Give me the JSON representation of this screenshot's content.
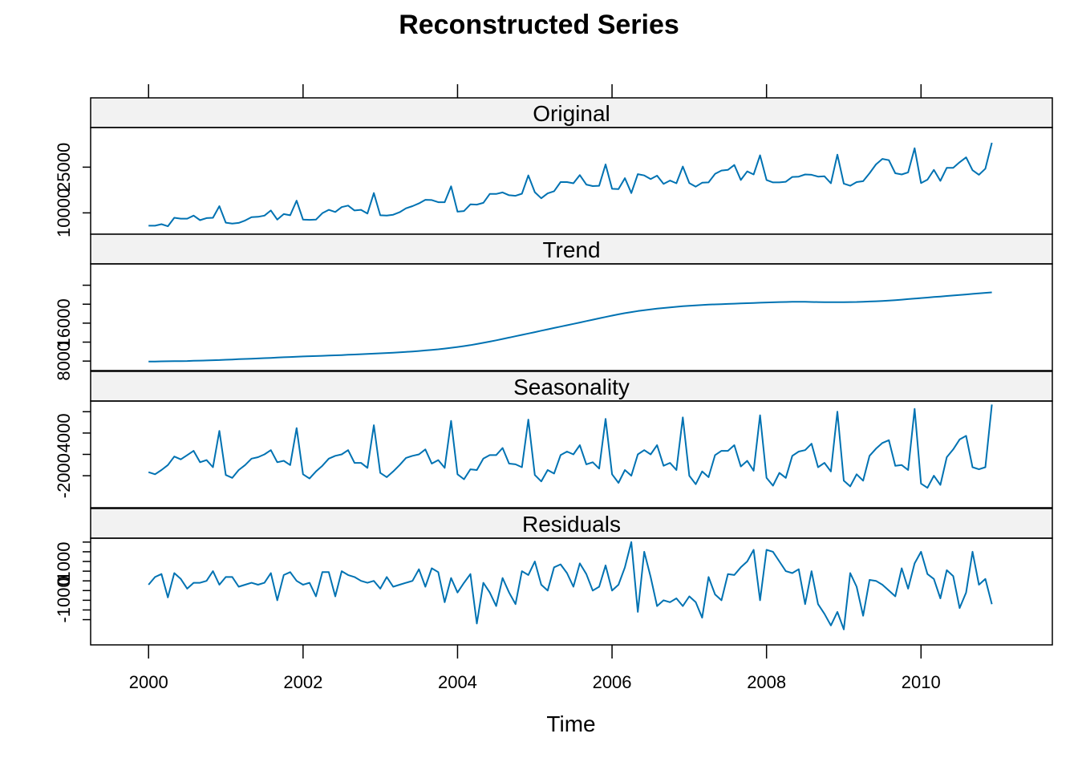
{
  "chart_data": {
    "type": "line",
    "title": "Reconstructed Series",
    "xlabel": "Time",
    "x_ticks": [
      "2000",
      "2002",
      "2004",
      "2006",
      "2008",
      "2010"
    ],
    "x_start": 2000,
    "x_frequency": 12,
    "xlim": [
      1999.25,
      2011.7
    ],
    "line_color": "#0072B2",
    "strip_color": "#f2f2f2",
    "panels": [
      {
        "name": "Original",
        "ylim": [
          3000,
          38000
        ],
        "y_ticks": [
          {
            "value": 10000,
            "label": "10000"
          },
          {
            "value": 25000,
            "label": "25000"
          }
        ],
        "values": [
          5800,
          5800,
          6300,
          5600,
          8400,
          8100,
          8100,
          9100,
          7600,
          8300,
          8400,
          12200,
          6800,
          6500,
          6700,
          7500,
          8600,
          8700,
          9100,
          10800,
          7800,
          9600,
          9200,
          14000,
          7800,
          7700,
          7800,
          9900,
          11000,
          10300,
          11900,
          12400,
          10800,
          11000,
          9800,
          16500,
          9200,
          9100,
          9400,
          10200,
          11500,
          12200,
          13100,
          14300,
          14200,
          13500,
          13500,
          18700,
          10400,
          10600,
          12800,
          12700,
          13300,
          16200,
          16200,
          16700,
          15800,
          15600,
          16300,
          22300,
          16800,
          14800,
          16400,
          17100,
          20100,
          20100,
          19700,
          22400,
          19300,
          18800,
          18900,
          25900,
          17900,
          17800,
          21400,
          16500,
          22700,
          22300,
          21100,
          22200,
          19500,
          20600,
          19700,
          25200,
          19800,
          18600,
          19900,
          20000,
          22800,
          23900,
          24100,
          25700,
          20800,
          23600,
          22600,
          28900,
          20800,
          20000,
          20000,
          20200,
          21800,
          21900,
          22600,
          22500,
          21900,
          22000,
          19700,
          29100,
          19600,
          18900,
          20100,
          20400,
          23000,
          25900,
          27700,
          27300,
          23000,
          22600,
          23300,
          31200,
          19800,
          20900,
          24100,
          20500,
          24800,
          24800,
          26600,
          28200,
          24000,
          22500,
          24500,
          33000
        ]
      },
      {
        "name": "Trend",
        "ylim": [
          6000,
          28500
        ],
        "y_ticks": [
          {
            "value": 8000,
            "label": "8000"
          },
          {
            "value": 16000,
            "label": "16000"
          }
        ],
        "minor_ticks": [
          12000,
          20000,
          24000
        ],
        "values": [
          7900,
          7920,
          7940,
          7960,
          7980,
          8000,
          8020,
          8060,
          8100,
          8140,
          8180,
          8220,
          8280,
          8340,
          8400,
          8450,
          8500,
          8560,
          8620,
          8680,
          8740,
          8800,
          8860,
          8920,
          8980,
          9020,
          9060,
          9110,
          9160,
          9210,
          9270,
          9330,
          9390,
          9450,
          9510,
          9570,
          9640,
          9710,
          9780,
          9860,
          9940,
          10030,
          10130,
          10240,
          10360,
          10490,
          10640,
          10800,
          10970,
          11160,
          11370,
          11600,
          11850,
          12110,
          12380,
          12660,
          12950,
          13240,
          13530,
          13820,
          14110,
          14400,
          14690,
          14980,
          15270,
          15560,
          15850,
          16140,
          16430,
          16720,
          17010,
          17300,
          17590,
          17860,
          18110,
          18340,
          18550,
          18740,
          18910,
          19060,
          19200,
          19330,
          19450,
          19560,
          19660,
          19750,
          19830,
          19900,
          19960,
          20010,
          20060,
          20110,
          20160,
          20210,
          20260,
          20310,
          20360,
          20400,
          20440,
          20470,
          20490,
          20500,
          20490,
          20470,
          20450,
          20430,
          20420,
          20410,
          20420,
          20440,
          20470,
          20510,
          20560,
          20620,
          20690,
          20770,
          20860,
          20960,
          21070,
          21180,
          21290,
          21400,
          21510,
          21620,
          21730,
          21840,
          21950,
          22060,
          22170,
          22280,
          22390,
          22500
        ]
      },
      {
        "name": "Seasonality",
        "ylim": [
          -6500,
          8500
        ],
        "y_ticks": [
          {
            "value": -2000,
            "label": "-2000"
          },
          {
            "value": 4000,
            "label": "4000"
          }
        ],
        "minor_ticks": [
          1000,
          7000
        ],
        "values": [
          -1500,
          -1800,
          -1200,
          -500,
          700,
          300,
          900,
          1500,
          -100,
          200,
          -800,
          4300,
          -1900,
          -2300,
          -1200,
          -500,
          400,
          600,
          1000,
          1600,
          -100,
          100,
          -500,
          4700,
          -1800,
          -2400,
          -1400,
          -600,
          400,
          800,
          1000,
          1600,
          -200,
          -200,
          -900,
          5100,
          -1600,
          -2200,
          -1400,
          -500,
          500,
          800,
          1000,
          1700,
          -300,
          200,
          -900,
          5700,
          -1800,
          -2500,
          -1100,
          -1200,
          400,
          900,
          900,
          1900,
          -300,
          -400,
          -800,
          5900,
          -1900,
          -2800,
          -1200,
          -1700,
          900,
          1400,
          1000,
          2300,
          -400,
          -100,
          -1000,
          6000,
          -1800,
          -3000,
          -1200,
          -2000,
          1000,
          1600,
          1000,
          2300,
          -600,
          -200,
          -1200,
          6200,
          -2000,
          -3200,
          -1400,
          -2200,
          900,
          1500,
          1500,
          2300,
          -700,
          100,
          -1300,
          6500,
          -2300,
          -3400,
          -1600,
          -2300,
          800,
          1400,
          1600,
          2500,
          -800,
          -200,
          -1400,
          7000,
          -2700,
          -3500,
          -1800,
          -2700,
          800,
          1800,
          2600,
          3000,
          -600,
          -500,
          -1200,
          7400,
          -3100,
          -3700,
          -2000,
          -3300,
          600,
          1700,
          3100,
          3600,
          -800,
          -1100,
          -800,
          8000
        ]
      },
      {
        "name": "Residuals",
        "ylim": [
          -3300,
          2200
        ],
        "y_ticks": [
          {
            "value": -1000,
            "label": "-1000"
          },
          {
            "value": 0,
            "label": "0"
          },
          {
            "value": 1000,
            "label": "1000"
          }
        ],
        "minor_ticks": [
          -2000,
          -1500,
          -500,
          500,
          1500,
          2000
        ],
        "values": [
          -200,
          200,
          350,
          -850,
          400,
          100,
          -400,
          -100,
          -100,
          0,
          500,
          -200,
          200,
          200,
          -300,
          -200,
          -100,
          -200,
          -100,
          400,
          -1000,
          300,
          450,
          0,
          -200,
          -100,
          -800,
          450,
          450,
          -800,
          500,
          300,
          200,
          0,
          -100,
          0,
          -400,
          200,
          -300,
          -200,
          -100,
          0,
          600,
          -300,
          650,
          450,
          -1100,
          150,
          -600,
          -100,
          350,
          -2200,
          -100,
          -600,
          -1300,
          150,
          -600,
          -1200,
          500,
          300,
          1000,
          -200,
          -500,
          700,
          850,
          400,
          -300,
          900,
          350,
          -500,
          -300,
          800,
          -500,
          -200,
          700,
          2000,
          -1600,
          1500,
          200,
          -1300,
          -1000,
          -1100,
          -900,
          -1300,
          -800,
          -1100,
          -1900,
          200,
          -700,
          -1000,
          350,
          300,
          700,
          1000,
          1600,
          -1000,
          1600,
          1500,
          1000,
          500,
          400,
          600,
          -1200,
          500,
          -1200,
          -1700,
          -2300,
          -1600,
          -2500,
          400,
          -300,
          -1800,
          50,
          0,
          -200,
          -500,
          -800,
          650,
          -400,
          900,
          1500,
          350,
          100,
          -900,
          550,
          250,
          -1400,
          -600,
          1500,
          -200,
          100,
          -1200
        ]
      }
    ]
  }
}
